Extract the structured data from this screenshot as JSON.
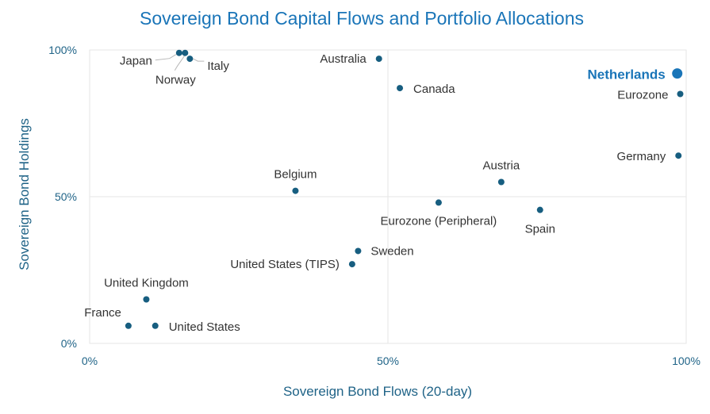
{
  "chart_data": {
    "type": "scatter",
    "title": "Sovereign Bond Capital Flows and Portfolio Allocations",
    "xlabel": "Sovereign Bond Flows (20-day)",
    "ylabel": "Sovereign Bond Holdings",
    "xlim": [
      0,
      100
    ],
    "ylim": [
      0,
      100
    ],
    "x_ticks": [
      {
        "value": 0,
        "label": "0%"
      },
      {
        "value": 50,
        "label": "50%"
      },
      {
        "value": 100,
        "label": "100%"
      }
    ],
    "y_ticks": [
      {
        "value": 0,
        "label": "0%"
      },
      {
        "value": 50,
        "label": "50%"
      },
      {
        "value": 100,
        "label": "100%"
      }
    ],
    "highlight": "Netherlands",
    "colors": {
      "point": "#175e80",
      "highlight": "#1a75b8",
      "title": "#1a75b8",
      "axis": "#1f6387"
    },
    "points": [
      {
        "name": "Japan",
        "x": 15,
        "y": 99
      },
      {
        "name": "Norway",
        "x": 16,
        "y": 99
      },
      {
        "name": "Italy",
        "x": 16.8,
        "y": 97
      },
      {
        "name": "Australia",
        "x": 48.5,
        "y": 97
      },
      {
        "name": "Canada",
        "x": 52,
        "y": 87
      },
      {
        "name": "Netherlands",
        "x": 98.5,
        "y": 92
      },
      {
        "name": "Eurozone",
        "x": 99,
        "y": 85
      },
      {
        "name": "Germany",
        "x": 98.7,
        "y": 64
      },
      {
        "name": "Belgium",
        "x": 34.5,
        "y": 52
      },
      {
        "name": "Austria",
        "x": 69,
        "y": 55
      },
      {
        "name": "Eurozone (Peripheral)",
        "x": 58.5,
        "y": 48
      },
      {
        "name": "Spain",
        "x": 75.5,
        "y": 45.5
      },
      {
        "name": "Sweden",
        "x": 45,
        "y": 31.5
      },
      {
        "name": "United States (TIPS)",
        "x": 44,
        "y": 27
      },
      {
        "name": "United Kingdom",
        "x": 9.5,
        "y": 15
      },
      {
        "name": "France",
        "x": 6.5,
        "y": 6
      },
      {
        "name": "United States",
        "x": 11,
        "y": 6
      }
    ]
  }
}
